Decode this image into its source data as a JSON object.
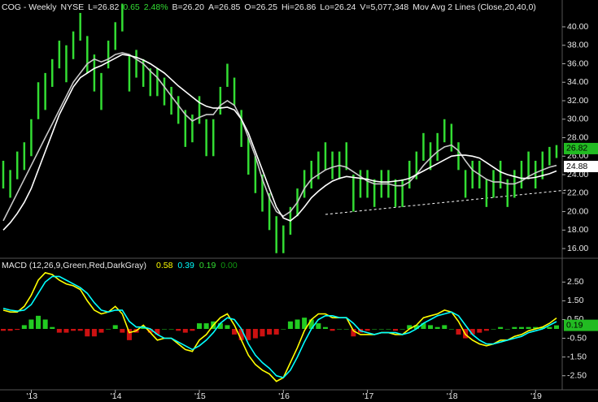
{
  "chart_data": [
    {
      "type": "range_bar",
      "header": [
        {
          "text": "COG - Weekly",
          "color": "#e8e8e8"
        },
        {
          "text": "NYSE",
          "color": "#e8e8e8"
        },
        {
          "text": "L=26.82",
          "color": "#e8e8e8"
        },
        {
          "text": "0.65",
          "color": "#33dd33"
        },
        {
          "text": "2.48%",
          "color": "#33dd33"
        },
        {
          "text": "B=26.20",
          "color": "#e8e8e8"
        },
        {
          "text": "A=26.85",
          "color": "#e8e8e8"
        },
        {
          "text": "O=26.25",
          "color": "#e8e8e8"
        },
        {
          "text": "Hi=26.86",
          "color": "#e8e8e8"
        },
        {
          "text": "Lo=26.24",
          "color": "#e8e8e8"
        },
        {
          "text": "V=5,077,348",
          "color": "#e8e8e8"
        },
        {
          "text": "Mov Avg 2 Lines (Close,20,40,0)",
          "color": "#e8e8e8"
        }
      ],
      "color": "#33dd33",
      "high": [
        25.5,
        24.5,
        26.5,
        27.5,
        30,
        34,
        35,
        36.5,
        38.5,
        38,
        39.5,
        41.5,
        39,
        37,
        35,
        38.5,
        40.5,
        42.5,
        37,
        37.5,
        36.5,
        35.5,
        35.5,
        34.5,
        33.5,
        32.5,
        31,
        30.5,
        32.5,
        30,
        30,
        33.5,
        36,
        34.5,
        31,
        28,
        26,
        24,
        22,
        19.5,
        18.5,
        20.5,
        22.5,
        24.5,
        25.5,
        26.5,
        27.5,
        26.5,
        26.5,
        27.5,
        24,
        24.5,
        24.5,
        23.5,
        24.5,
        24.5,
        23.5,
        23.5,
        25.5,
        26.5,
        28.5,
        27.5,
        28.5,
        30,
        29.5,
        27.5,
        24.5,
        25.5,
        25.5,
        23.5,
        24.5,
        25.5,
        23.5,
        24.5,
        25.5,
        26.5,
        25.5,
        26.5,
        27,
        27.2
      ],
      "low": [
        22.5,
        21.5,
        23.5,
        24.5,
        26,
        30,
        31,
        33.5,
        35.5,
        34,
        36.5,
        38.5,
        35,
        33,
        31,
        35.5,
        37.5,
        39.5,
        33,
        34.5,
        33.5,
        32.5,
        32.5,
        31.5,
        30.5,
        29.5,
        27,
        27.5,
        29.5,
        26,
        26,
        30.5,
        33.5,
        31.5,
        27,
        24,
        22,
        20,
        18,
        15.5,
        15.5,
        17.5,
        19.5,
        21.5,
        22.5,
        23.5,
        24.5,
        23.5,
        23.5,
        24.5,
        20,
        21.5,
        21.5,
        20.5,
        21.5,
        21.5,
        20.5,
        20.5,
        22.5,
        23.5,
        25.5,
        24.5,
        25.5,
        27.5,
        26.5,
        24.5,
        21.5,
        22.5,
        22.5,
        20.5,
        21.5,
        22.5,
        20.5,
        21.5,
        22.5,
        23.5,
        22.5,
        23.5,
        25,
        25.8
      ],
      "lines": [
        {
          "color": "#c8c8c8",
          "values": [
            19,
            20.5,
            22,
            23.5,
            25,
            26.5,
            28,
            29.5,
            31,
            32.5,
            34,
            35,
            36,
            36.5,
            36.2,
            36.5,
            37,
            37.2,
            37,
            36.5,
            36,
            35.2,
            34.5,
            33.5,
            32.5,
            31.5,
            30.5,
            29.8,
            30.2,
            30.5,
            30.5,
            31.5,
            32,
            31.5,
            30,
            28,
            26,
            23.5,
            21.5,
            20,
            19.5,
            20,
            21,
            22.5,
            23.5,
            24,
            24.5,
            24.8,
            25,
            24.8,
            24.3,
            23.8,
            23.3,
            23,
            23,
            23,
            22.8,
            22.8,
            23.2,
            24,
            25,
            25.8,
            26.5,
            27,
            27.2,
            26.6,
            25.5,
            24.5,
            24,
            23.5,
            23.2,
            23.2,
            23,
            23,
            23.3,
            23.8,
            24.2,
            24.5,
            24.8,
            25
          ]
        },
        {
          "color": "#ffffff",
          "values": [
            18,
            18.8,
            19.8,
            21,
            22.5,
            24.5,
            26.5,
            28.5,
            30.5,
            32,
            33.5,
            34.5,
            35,
            35.5,
            35.8,
            36.2,
            36.6,
            37,
            36.9,
            36.7,
            36.4,
            36,
            35.5,
            35,
            34.3,
            33.6,
            33,
            32.4,
            31.8,
            31.4,
            31.2,
            31.2,
            31.3,
            31,
            30,
            28.5,
            26.5,
            24.5,
            22.5,
            20.5,
            19.3,
            19,
            19.6,
            20.5,
            21.5,
            22.2,
            22.8,
            23.3,
            23.6,
            23.8,
            23.7,
            23.6,
            23.5,
            23.3,
            23.2,
            23.2,
            23.3,
            23.4,
            23.6,
            24,
            24.4,
            24.8,
            25.2,
            25.6,
            26,
            26.1,
            26.1,
            26,
            25.8,
            25.3,
            24.8,
            24.3,
            24,
            23.8,
            23.6,
            23.6,
            23.7,
            23.9,
            24.1,
            24.4
          ]
        }
      ],
      "ylim": [
        14.95,
        42.9
      ],
      "yticks": [
        {
          "value": 16,
          "label": "16.00"
        },
        {
          "value": 18,
          "label": "18.00"
        },
        {
          "value": 20,
          "label": "20.00"
        },
        {
          "value": 22,
          "label": "22.00"
        },
        {
          "value": 24,
          "label": "24.00"
        },
        {
          "value": 26,
          "label": "26.00"
        },
        {
          "value": 28,
          "label": "28.00"
        },
        {
          "value": 30,
          "label": "30.00"
        },
        {
          "value": 32,
          "label": "32.00"
        },
        {
          "value": 34,
          "label": "34.00"
        },
        {
          "value": 36,
          "label": "36.00"
        },
        {
          "value": 38,
          "label": "38.00"
        },
        {
          "value": 40,
          "label": "40.00"
        }
      ],
      "last_labels": [
        {
          "value": 26.82,
          "label": "26.82",
          "color": "#22bb22"
        },
        {
          "value": 24.88,
          "label": "24.88",
          "color": "#ffffff"
        }
      ]
    },
    {
      "type": "macd",
      "title": "MACD (12,26,9,Green,Red,DarkGray)",
      "readouts": {
        "values": [
          0.58,
          0.39,
          0.19,
          0
        ],
        "value_labels": [
          "0.58",
          "0.39",
          "0.19",
          "0.00"
        ],
        "colors": [
          "#ffff00",
          "#00ffff",
          "#33dd33",
          "#119911"
        ]
      },
      "categories": [
        null,
        null,
        null,
        null,
        "'13",
        null,
        null,
        null,
        null,
        null,
        null,
        null,
        null,
        null,
        null,
        null,
        "'14",
        null,
        null,
        null,
        null,
        null,
        null,
        null,
        null,
        null,
        null,
        null,
        "'15",
        null,
        null,
        null,
        null,
        null,
        null,
        null,
        null,
        null,
        null,
        null,
        "'16",
        null,
        null,
        null,
        null,
        null,
        null,
        null,
        null,
        null,
        null,
        null,
        "'17",
        null,
        null,
        null,
        null,
        null,
        null,
        null,
        null,
        null,
        null,
        null,
        "'18",
        null,
        null,
        null,
        null,
        null,
        null,
        null,
        null,
        null,
        null,
        null,
        "'19",
        null,
        null,
        null
      ],
      "series": [
        {
          "color": "#ffff00",
          "values": [
            1.0,
            0.9,
            0.9,
            1.2,
            1.8,
            2.6,
            3.0,
            2.9,
            2.6,
            2.4,
            2.3,
            2.1,
            1.5,
            1.0,
            0.8,
            0.9,
            1.2,
            0.8,
            -0.2,
            -0.1,
            0.2,
            -0.2,
            -0.6,
            -0.5,
            -0.5,
            -0.8,
            -1.1,
            -1.2,
            -0.6,
            -0.3,
            0.2,
            0.6,
            0.8,
            0.2,
            -0.6,
            -1.4,
            -1.9,
            -2.2,
            -2.4,
            -2.8,
            -2.6,
            -1.8,
            -1.0,
            -0.1,
            0.5,
            0.8,
            0.8,
            0.6,
            0.6,
            0.6,
            -0.1,
            -0.3,
            -0.3,
            -0.3,
            -0.2,
            -0.2,
            -0.3,
            -0.3,
            0.0,
            0.2,
            0.6,
            0.7,
            0.8,
            1.0,
            0.9,
            0.4,
            -0.3,
            -0.6,
            -0.8,
            -0.9,
            -0.8,
            -0.6,
            -0.6,
            -0.4,
            -0.3,
            -0.1,
            0.0,
            0.1,
            0.3,
            0.58
          ]
        },
        {
          "color": "#00ffff",
          "values": [
            1.1,
            1.0,
            0.95,
            1.0,
            1.3,
            1.9,
            2.5,
            2.8,
            2.8,
            2.6,
            2.4,
            2.2,
            1.9,
            1.4,
            1.0,
            0.9,
            1.0,
            1.0,
            0.4,
            0.1,
            0.1,
            0.0,
            -0.3,
            -0.5,
            -0.5,
            -0.7,
            -0.9,
            -1.1,
            -0.9,
            -0.6,
            -0.2,
            0.3,
            0.6,
            0.5,
            0.0,
            -0.8,
            -1.4,
            -1.8,
            -2.1,
            -2.5,
            -2.6,
            -2.2,
            -1.5,
            -0.7,
            0.0,
            0.5,
            0.7,
            0.7,
            0.6,
            0.6,
            0.3,
            -0.1,
            -0.2,
            -0.3,
            -0.2,
            -0.2,
            -0.2,
            -0.3,
            -0.2,
            0.0,
            0.3,
            0.5,
            0.7,
            0.8,
            0.9,
            0.7,
            0.2,
            -0.3,
            -0.6,
            -0.8,
            -0.8,
            -0.7,
            -0.6,
            -0.5,
            -0.4,
            -0.2,
            -0.1,
            0.0,
            0.2,
            0.39
          ]
        }
      ],
      "histogram": {
        "up_color": "#22cc22",
        "down_color": "#cc1111",
        "values": [
          -0.1,
          -0.1,
          -0.05,
          0.2,
          0.5,
          0.7,
          0.5,
          0.1,
          -0.2,
          -0.2,
          -0.1,
          -0.1,
          -0.4,
          -0.4,
          -0.2,
          0.0,
          0.2,
          -0.2,
          -0.6,
          -0.2,
          0.1,
          -0.2,
          -0.3,
          0.0,
          0.0,
          -0.1,
          -0.2,
          -0.1,
          0.3,
          0.3,
          0.4,
          0.3,
          0.2,
          -0.3,
          -0.6,
          -0.6,
          -0.5,
          -0.4,
          -0.3,
          -0.3,
          0.0,
          0.4,
          0.5,
          0.6,
          0.5,
          0.3,
          0.1,
          -0.1,
          0.0,
          0.0,
          -0.4,
          -0.2,
          -0.1,
          0.0,
          0.0,
          0.0,
          -0.1,
          0.0,
          0.2,
          0.2,
          0.3,
          0.2,
          0.1,
          0.2,
          0.0,
          -0.3,
          -0.5,
          -0.3,
          -0.2,
          -0.1,
          0.0,
          0.1,
          0.0,
          0.1,
          0.1,
          0.1,
          0.1,
          0.1,
          0.1,
          0.19
        ]
      },
      "ylim": [
        -3.25,
        3.77
      ],
      "yticks": [
        {
          "value": 2.5,
          "label": "2.50"
        },
        {
          "value": 1.5,
          "label": "1.50"
        },
        {
          "value": 0.5,
          "label": "0.50"
        },
        {
          "value": -0.5,
          "label": "-0.50"
        },
        {
          "value": -1.5,
          "label": "-1.50"
        },
        {
          "value": -2.5,
          "label": "-2.50"
        }
      ],
      "last_labels": [
        {
          "value": 0.19,
          "label": "0.19",
          "color": "#22bb22"
        }
      ]
    }
  ]
}
